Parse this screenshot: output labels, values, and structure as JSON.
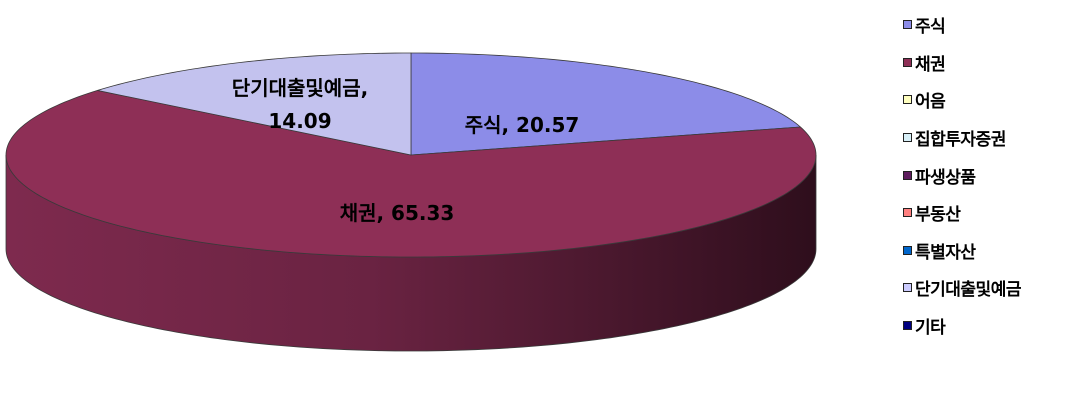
{
  "chart_data": {
    "type": "pie",
    "title": "",
    "slices": [
      {
        "name": "주식",
        "value": 20.57,
        "color": "#8C8CE8",
        "side": "#5A5AA8",
        "label_line1": "주식, 20.57",
        "label_line2": ""
      },
      {
        "name": "채권",
        "value": 65.33,
        "color": "#8E2F56",
        "side": "#4E1A30",
        "label_line1": "채권, 65.33",
        "label_line2": ""
      },
      {
        "name": "단기대출및예금",
        "value": 14.09,
        "color": "#C3C2EE",
        "side": "#8F8EC0",
        "label_line1": "단기대출및예금,",
        "label_line2": "14.09"
      }
    ],
    "legend_position": "right",
    "legend": [
      {
        "label": "주식",
        "color": "#8C8CE8"
      },
      {
        "label": "채권",
        "color": "#8E2F56"
      },
      {
        "label": "어음",
        "color": "#FFFFC0"
      },
      {
        "label": "집합투자증권",
        "color": "#D8F0F8"
      },
      {
        "label": "파생상품",
        "color": "#5E1C5E"
      },
      {
        "label": "부동산",
        "color": "#FF8080"
      },
      {
        "label": "특별자산",
        "color": "#0066CC"
      },
      {
        "label": "단기대출및예금",
        "color": "#CCCCFF"
      },
      {
        "label": "기타",
        "color": "#000080"
      }
    ]
  }
}
